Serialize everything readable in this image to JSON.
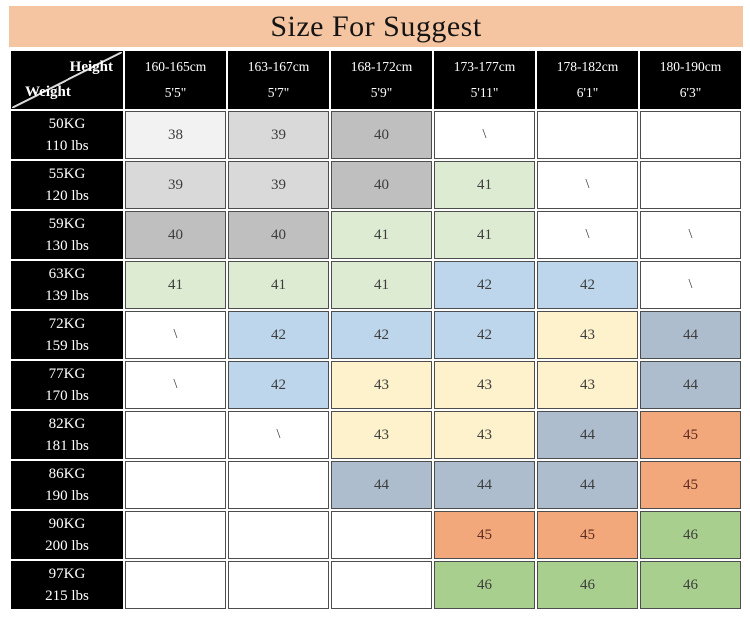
{
  "title": "Size For Suggest",
  "corner": {
    "top_label": "Height",
    "bottom_label": "Weight"
  },
  "columns": [
    {
      "cm": "160-165cm",
      "ft": "5'5\""
    },
    {
      "cm": "163-167cm",
      "ft": "5'7\""
    },
    {
      "cm": "168-172cm",
      "ft": "5'9\""
    },
    {
      "cm": "173-177cm",
      "ft": "5'11\""
    },
    {
      "cm": "178-182cm",
      "ft": "6'1\""
    },
    {
      "cm": "180-190cm",
      "ft": "6'3\""
    }
  ],
  "rows": [
    {
      "kg": "50KG",
      "lbs": "110 lbs",
      "sizes": [
        "38",
        "39",
        "40",
        "\\",
        "",
        ""
      ]
    },
    {
      "kg": "55KG",
      "lbs": "120 lbs",
      "sizes": [
        "39",
        "39",
        "40",
        "41",
        "\\",
        ""
      ]
    },
    {
      "kg": "59KG",
      "lbs": "130 lbs",
      "sizes": [
        "40",
        "40",
        "41",
        "41",
        "\\",
        "\\"
      ]
    },
    {
      "kg": "63KG",
      "lbs": "139 lbs",
      "sizes": [
        "41",
        "41",
        "41",
        "42",
        "42",
        "\\"
      ]
    },
    {
      "kg": "72KG",
      "lbs": "159 lbs",
      "sizes": [
        "\\",
        "42",
        "42",
        "42",
        "43",
        "44"
      ]
    },
    {
      "kg": "77KG",
      "lbs": "170 lbs",
      "sizes": [
        "\\",
        "42",
        "43",
        "43",
        "43",
        "44"
      ]
    },
    {
      "kg": "82KG",
      "lbs": "181 lbs",
      "sizes": [
        "",
        "\\",
        "43",
        "43",
        "44",
        "45"
      ]
    },
    {
      "kg": "86KG",
      "lbs": "190 lbs",
      "sizes": [
        "",
        "",
        "44",
        "44",
        "44",
        "45"
      ]
    },
    {
      "kg": "90KG",
      "lbs": "200 lbs",
      "sizes": [
        "",
        "",
        "",
        "45",
        "45",
        "46"
      ]
    },
    {
      "kg": "97KG",
      "lbs": "215 lbs",
      "sizes": [
        "",
        "",
        "",
        "46",
        "46",
        "46"
      ]
    }
  ],
  "colors": {
    "title_bg": "#F5C5A1",
    "header_bg": "#000000",
    "header_text": "#FFFFFF",
    "grid_border": "#4D4D4D",
    "cell_text": "#3D3D3D",
    "size_45_text": "#5E2B22",
    "empty_bg": "#FFFFFF",
    "size_bg": {
      "38": "#F2F2F2",
      "39": "#D9D9D9",
      "40": "#BFBFBF",
      "41": "#DEEBD3",
      "42": "#BDD6EC",
      "43": "#FDF2CC",
      "44": "#AEBDCD",
      "45": "#F3A87C",
      "46": "#A8CF8E"
    }
  }
}
